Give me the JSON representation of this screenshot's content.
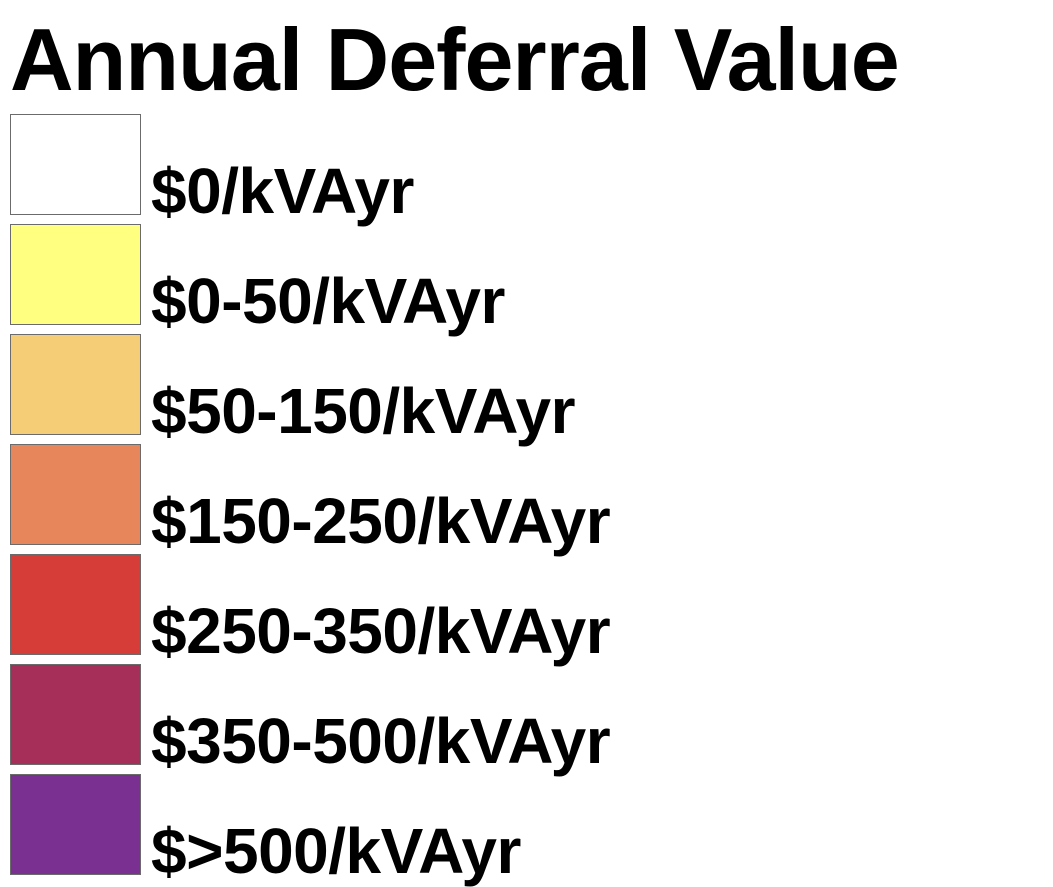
{
  "legend": {
    "title": "Annual Deferral Value",
    "items": [
      {
        "label": "$0/kVAyr",
        "color": "#ffffff"
      },
      {
        "label": "$0-50/kVAyr",
        "color": "#ffff80"
      },
      {
        "label": "$50-150/kVAyr",
        "color": "#f5cd76"
      },
      {
        "label": "$150-250/kVAyr",
        "color": "#e6865a"
      },
      {
        "label": "$250-350/kVAyr",
        "color": "#d63d39"
      },
      {
        "label": "$350-500/kVAyr",
        "color": "#a62f5a"
      },
      {
        "label": "$>500/kVAyr",
        "color": "#7a3090"
      }
    ]
  }
}
